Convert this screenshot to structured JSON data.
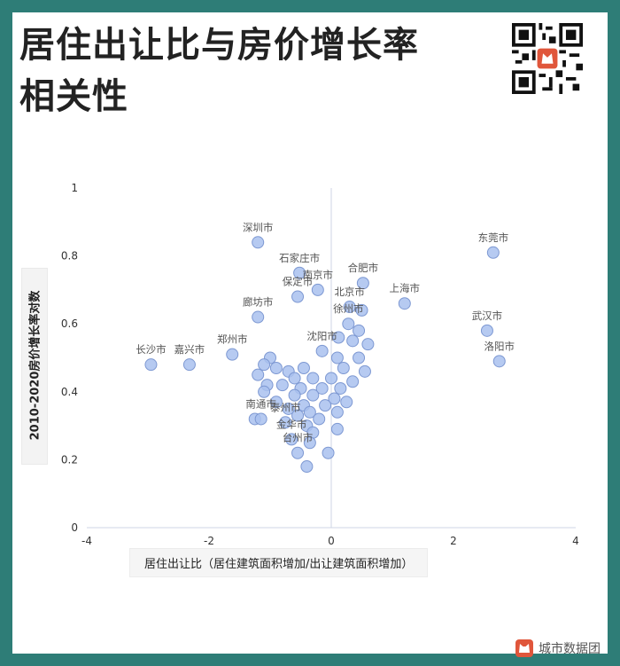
{
  "title_line1": "居住出让比与房价增长率",
  "title_line2": "相关性",
  "footer_brand": "城市数据团",
  "colors": {
    "frame": "#2e7d77",
    "point_fill": "#a9c1ee",
    "point_stroke": "#7d98d2",
    "brand": "#e0563b"
  },
  "icons": {
    "qr": "qr-code-icon",
    "logo": "cat-logo-icon"
  },
  "chart_data": {
    "type": "scatter",
    "xlabel": "居住出让比（居住建筑面积增加/出让建筑面积增加）",
    "ylabel": "2010-2020房价增长率对数",
    "xlim": [
      -4,
      4
    ],
    "ylim": [
      0,
      1
    ],
    "xticks": [
      "-4",
      "-2",
      "0",
      "2",
      "4"
    ],
    "yticks": [
      "0",
      "0.2",
      "0.4",
      "0.6",
      "0.8",
      "1"
    ],
    "grid": false,
    "labeled_points": [
      {
        "label": "深圳市",
        "x": -1.2,
        "y": 0.84
      },
      {
        "label": "石家庄市",
        "x": -0.52,
        "y": 0.75
      },
      {
        "label": "南京市",
        "x": -0.22,
        "y": 0.7
      },
      {
        "label": "保定市",
        "x": -0.55,
        "y": 0.68
      },
      {
        "label": "合肥市",
        "x": 0.52,
        "y": 0.72
      },
      {
        "label": "东莞市",
        "x": 2.65,
        "y": 0.81
      },
      {
        "label": "上海市",
        "x": 1.2,
        "y": 0.66
      },
      {
        "label": "廊坊市",
        "x": -1.2,
        "y": 0.62
      },
      {
        "label": "武汉市",
        "x": 2.55,
        "y": 0.58
      },
      {
        "label": "洛阳市",
        "x": 2.75,
        "y": 0.49
      },
      {
        "label": "长沙市",
        "x": -2.95,
        "y": 0.48
      },
      {
        "label": "嘉兴市",
        "x": -2.32,
        "y": 0.48
      },
      {
        "label": "郑州市",
        "x": -1.62,
        "y": 0.51
      },
      {
        "label": "北京市",
        "x": 0.3,
        "y": 0.65
      },
      {
        "label": "徐州市",
        "x": 0.28,
        "y": 0.6
      },
      {
        "label": "沈阳市",
        "x": -0.15,
        "y": 0.52
      },
      {
        "label": "南通市",
        "x": -1.15,
        "y": 0.32
      },
      {
        "label": "泰州市",
        "x": -0.75,
        "y": 0.31
      },
      {
        "label": "金华市",
        "x": -0.65,
        "y": 0.26
      },
      {
        "label": "台州市",
        "x": -0.55,
        "y": 0.22
      }
    ],
    "points": [
      {
        "x": -1.2,
        "y": 0.84
      },
      {
        "x": -0.52,
        "y": 0.75
      },
      {
        "x": -0.22,
        "y": 0.7
      },
      {
        "x": -0.55,
        "y": 0.68
      },
      {
        "x": 0.52,
        "y": 0.72
      },
      {
        "x": 2.65,
        "y": 0.81
      },
      {
        "x": 1.2,
        "y": 0.66
      },
      {
        "x": -1.2,
        "y": 0.62
      },
      {
        "x": 2.55,
        "y": 0.58
      },
      {
        "x": 2.75,
        "y": 0.49
      },
      {
        "x": -2.95,
        "y": 0.48
      },
      {
        "x": -2.32,
        "y": 0.48
      },
      {
        "x": -1.62,
        "y": 0.51
      },
      {
        "x": 0.3,
        "y": 0.65
      },
      {
        "x": 0.5,
        "y": 0.64
      },
      {
        "x": 0.28,
        "y": 0.6
      },
      {
        "x": 0.45,
        "y": 0.58
      },
      {
        "x": 0.12,
        "y": 0.56
      },
      {
        "x": 0.35,
        "y": 0.55
      },
      {
        "x": 0.6,
        "y": 0.54
      },
      {
        "x": -0.15,
        "y": 0.52
      },
      {
        "x": 0.1,
        "y": 0.5
      },
      {
        "x": 0.45,
        "y": 0.5
      },
      {
        "x": -1.0,
        "y": 0.5
      },
      {
        "x": -1.1,
        "y": 0.48
      },
      {
        "x": -0.9,
        "y": 0.47
      },
      {
        "x": -0.7,
        "y": 0.46
      },
      {
        "x": -0.45,
        "y": 0.47
      },
      {
        "x": 0.2,
        "y": 0.47
      },
      {
        "x": 0.55,
        "y": 0.46
      },
      {
        "x": -1.2,
        "y": 0.45
      },
      {
        "x": -0.6,
        "y": 0.44
      },
      {
        "x": -0.3,
        "y": 0.44
      },
      {
        "x": 0.0,
        "y": 0.44
      },
      {
        "x": 0.35,
        "y": 0.43
      },
      {
        "x": -1.05,
        "y": 0.42
      },
      {
        "x": -0.8,
        "y": 0.42
      },
      {
        "x": -0.5,
        "y": 0.41
      },
      {
        "x": -0.15,
        "y": 0.41
      },
      {
        "x": 0.15,
        "y": 0.41
      },
      {
        "x": -1.1,
        "y": 0.4
      },
      {
        "x": -0.6,
        "y": 0.39
      },
      {
        "x": -0.3,
        "y": 0.39
      },
      {
        "x": 0.05,
        "y": 0.38
      },
      {
        "x": -0.9,
        "y": 0.37
      },
      {
        "x": -0.45,
        "y": 0.36
      },
      {
        "x": -0.1,
        "y": 0.36
      },
      {
        "x": 0.25,
        "y": 0.37
      },
      {
        "x": -0.7,
        "y": 0.35
      },
      {
        "x": -0.35,
        "y": 0.34
      },
      {
        "x": 0.1,
        "y": 0.34
      },
      {
        "x": -0.55,
        "y": 0.33
      },
      {
        "x": -0.2,
        "y": 0.32
      },
      {
        "x": -1.25,
        "y": 0.32
      },
      {
        "x": -1.15,
        "y": 0.32
      },
      {
        "x": -0.75,
        "y": 0.31
      },
      {
        "x": -0.4,
        "y": 0.3
      },
      {
        "x": 0.1,
        "y": 0.29
      },
      {
        "x": -0.3,
        "y": 0.28
      },
      {
        "x": -0.65,
        "y": 0.26
      },
      {
        "x": -0.35,
        "y": 0.25
      },
      {
        "x": -0.55,
        "y": 0.22
      },
      {
        "x": -0.05,
        "y": 0.22
      },
      {
        "x": -0.4,
        "y": 0.18
      }
    ]
  }
}
